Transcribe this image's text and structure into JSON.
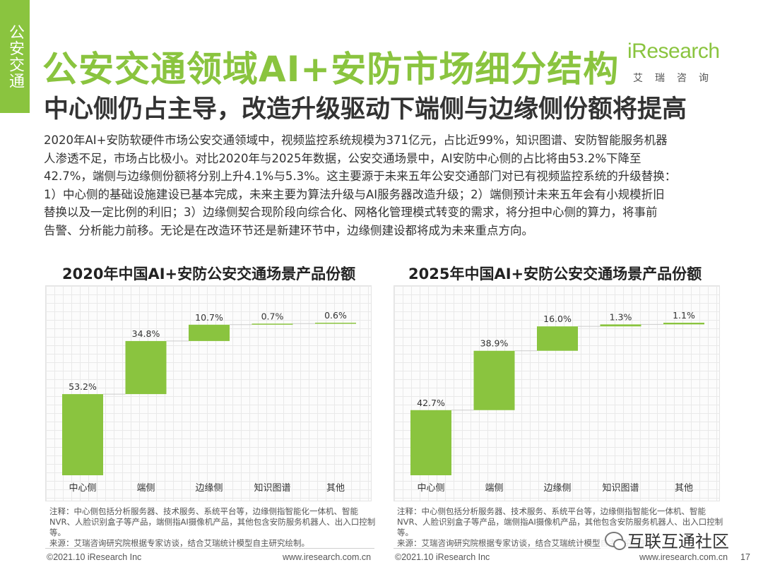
{
  "side_tab": "公安交通",
  "title": "公安交通领域AI+安防市场细分结构",
  "subtitle": "中心侧仍占主导，改造升级驱动下端侧与边缘侧份额将提高",
  "logo": {
    "word": "iResearch",
    "cn": "艾瑞咨询",
    "accent": "#8ac43f"
  },
  "body_lines": [
    "2020年AI+安防软硬件市场公安交通领域中，视频监控系统规模为371亿元，占比近99%，知识图谱、安防智能服务机器",
    "人渗透不足，市场占比极小。对比2020年与2025年数据，公安交通场景中，AI安防中心侧的占比将由53.2%下降至",
    "42.7%，端侧与边缘侧份额将分别上升4.1%与5.3%。这主要源于未来五年公安交通部门对已有视频监控系统的升级替换：",
    "1）中心侧的基础设施建设已基本完成，未来主要为算法升级与AI服务器改造升级；2）端侧预计未来五年会有小规模折旧",
    "替换以及一定比例的利旧；3）边缘侧契合现阶段向综合化、网格化管理模式转变的需求，将分担中心侧的算力，将事前",
    "告警、分析能力前移。无论是在改造环节还是新建环节中，边缘侧建设都将成为未来重点方向。"
  ],
  "chart_data": [
    {
      "type": "bar",
      "subtype": "waterfall",
      "title": "2020年中国AI+安防公安交通场景产品份额",
      "categories": [
        "中心侧",
        "端侧",
        "边缘侧",
        "知识图谱",
        "其他"
      ],
      "values": [
        53.2,
        34.8,
        10.7,
        0.7,
        0.6
      ],
      "labels": [
        "53.2%",
        "34.8%",
        "10.7%",
        "0.7%",
        "0.6%"
      ],
      "unit": "%",
      "ylim": [
        0,
        100
      ],
      "color": "#8ac43f",
      "grid": true
    },
    {
      "type": "bar",
      "subtype": "waterfall",
      "title": "2025年中国AI+安防公安交通场景产品份额",
      "categories": [
        "中心侧",
        "端侧",
        "边缘侧",
        "知识图谱",
        "其他"
      ],
      "values": [
        42.7,
        38.9,
        16.0,
        1.3,
        1.1
      ],
      "labels": [
        "42.7%",
        "38.9%",
        "16.0%",
        "1.3%",
        "1.1%"
      ],
      "unit": "%",
      "ylim": [
        0,
        100
      ],
      "color": "#8ac43f",
      "grid": true
    }
  ],
  "notes": [
    {
      "note": "注释：中心侧包括分析服务器、技术服务、系统平台等，边缘侧指智能化一体机、智能NVR、人脸识别盒子等产品，端侧指AI摄像机产品，其他包含安防服务机器人、出入口控制等。",
      "source": "来源：艾瑞咨询研究院根据专家访谈，结合艾瑞统计模型自主研究绘制。"
    },
    {
      "note": "注释：中心侧包括分析服务器、技术服务、系统平台等，边缘侧指智能化一体机、智能NVR、人脸识别盒子等产品，端侧指AI摄像机产品，其他包含安防服务机器人、出入口控制等。",
      "source": "来源：艾瑞咨询研究院根据专家访谈，结合艾瑞统计模型自主研究绘制。"
    }
  ],
  "footer": {
    "copyright": "©2021.10 iResearch Inc",
    "website": "www.iresearch.com.cn",
    "page": "17"
  },
  "watermark": "互联互通社区"
}
